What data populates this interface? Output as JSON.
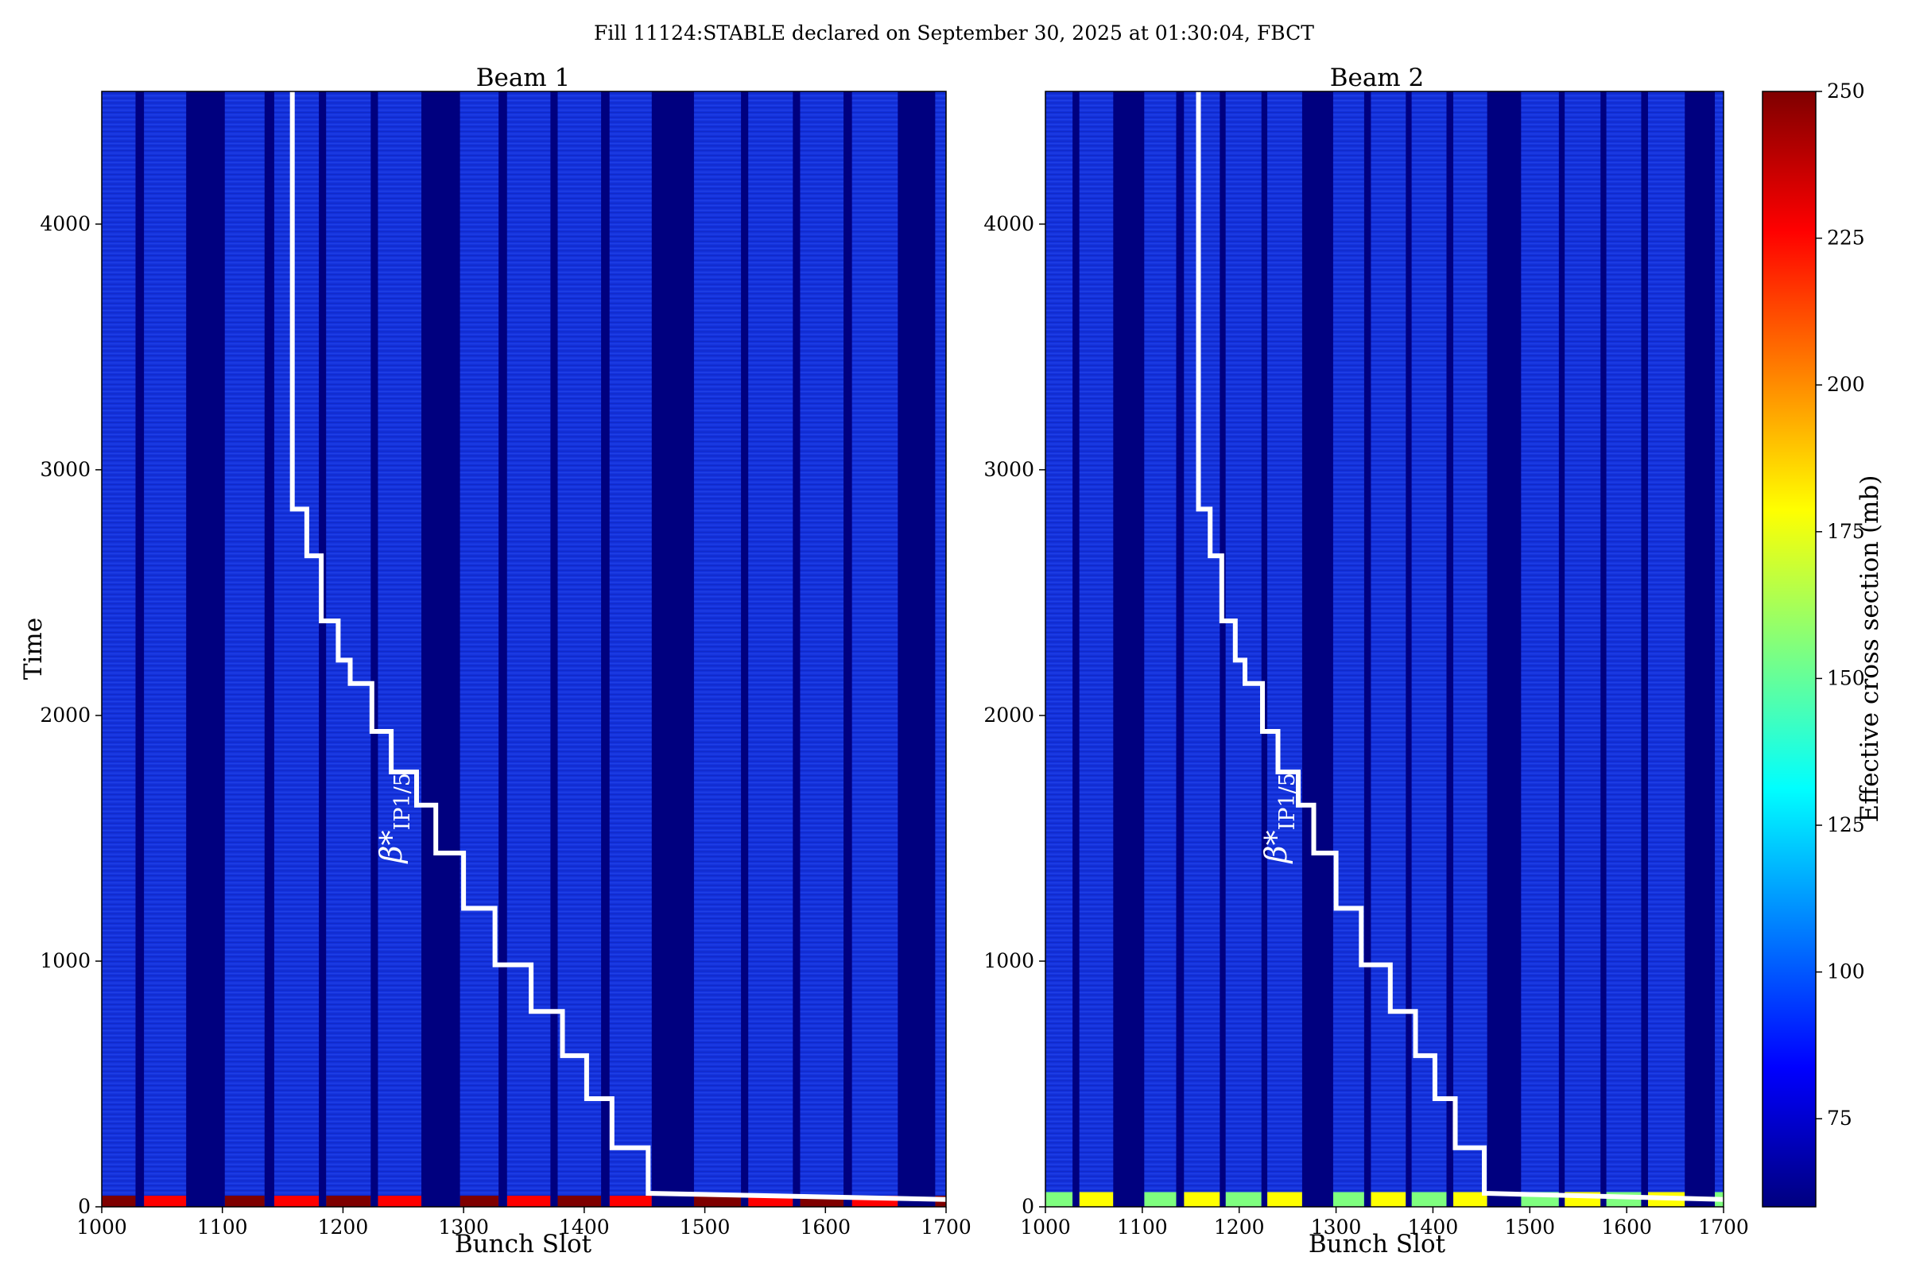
{
  "title": "Fill 11124:STABLE declared on September 30, 2025 at 01:30:04, FBCT",
  "colorbar": {
    "label": "Effective cross section (mb)",
    "ticks": [
      75,
      100,
      125,
      150,
      175,
      200,
      225,
      250
    ],
    "range": [
      60,
      250
    ],
    "colormap": [
      "#00007f",
      "#0000ff",
      "#007fff",
      "#00ffff",
      "#7fff7f",
      "#ffff00",
      "#ff7f00",
      "#ff0000",
      "#7f0000"
    ]
  },
  "background_color": "#1432dc",
  "empty_slot_color": "#00007f",
  "chart_data": [
    {
      "type": "heatmap",
      "title": "Beam 1",
      "xlabel": "Bunch Slot",
      "ylabel": "Time",
      "xlim": [
        1000,
        1700
      ],
      "ylim": [
        0,
        4540
      ],
      "x_ticks": [
        1000,
        1100,
        1200,
        1300,
        1400,
        1500,
        1600,
        1700
      ],
      "y_ticks": [
        0,
        1000,
        2000,
        3000,
        4000
      ],
      "empty_slot_ranges": [
        [
          1028,
          1035
        ],
        [
          1070,
          1102
        ],
        [
          1135,
          1143
        ],
        [
          1180,
          1186
        ],
        [
          1223,
          1229
        ],
        [
          1265,
          1297
        ],
        [
          1329,
          1336
        ],
        [
          1372,
          1378
        ],
        [
          1414,
          1421
        ],
        [
          1456,
          1491
        ],
        [
          1530,
          1536
        ],
        [
          1573,
          1579
        ],
        [
          1615,
          1622
        ],
        [
          1660,
          1691
        ]
      ],
      "early_hot_rows_max_time": 45,
      "beta_star_curve": {
        "label": "β*",
        "label_subscript": "IP1/5",
        "x": [
          1158,
          1158,
          1170,
          1170,
          1182,
          1182,
          1196,
          1196,
          1206,
          1206,
          1224,
          1224,
          1240,
          1240,
          1261,
          1261,
          1277,
          1277,
          1300,
          1300,
          1326,
          1326,
          1356,
          1356,
          1382,
          1382,
          1402,
          1402,
          1423,
          1423,
          1453,
          1453,
          1700
        ],
        "y": [
          4540,
          2840,
          2840,
          2650,
          2650,
          2385,
          2385,
          2225,
          2225,
          2130,
          2130,
          1935,
          1935,
          1770,
          1770,
          1635,
          1635,
          1440,
          1440,
          1215,
          1215,
          985,
          985,
          795,
          795,
          615,
          615,
          440,
          440,
          240,
          240,
          55,
          30
        ]
      }
    },
    {
      "type": "heatmap",
      "title": "Beam 2",
      "xlabel": "Bunch Slot",
      "ylabel": "",
      "xlim": [
        1000,
        1700
      ],
      "ylim": [
        0,
        4540
      ],
      "x_ticks": [
        1000,
        1100,
        1200,
        1300,
        1400,
        1500,
        1600,
        1700
      ],
      "y_ticks": [
        0,
        1000,
        2000,
        3000,
        4000
      ],
      "empty_slot_ranges": [
        [
          1028,
          1035
        ],
        [
          1070,
          1102
        ],
        [
          1135,
          1143
        ],
        [
          1180,
          1186
        ],
        [
          1223,
          1229
        ],
        [
          1265,
          1297
        ],
        [
          1329,
          1336
        ],
        [
          1372,
          1378
        ],
        [
          1414,
          1421
        ],
        [
          1456,
          1491
        ],
        [
          1530,
          1536
        ],
        [
          1573,
          1579
        ],
        [
          1615,
          1622
        ],
        [
          1660,
          1691
        ]
      ],
      "early_hot_rows_max_time": 60,
      "beta_star_curve": {
        "label": "β*",
        "label_subscript": "IP1/5",
        "x": [
          1158,
          1158,
          1170,
          1170,
          1182,
          1182,
          1196,
          1196,
          1206,
          1206,
          1224,
          1224,
          1240,
          1240,
          1261,
          1261,
          1277,
          1277,
          1300,
          1300,
          1326,
          1326,
          1356,
          1356,
          1382,
          1382,
          1402,
          1402,
          1423,
          1423,
          1453,
          1453,
          1700
        ],
        "y": [
          4540,
          2840,
          2840,
          2650,
          2650,
          2385,
          2385,
          2225,
          2225,
          2130,
          2130,
          1935,
          1935,
          1770,
          1770,
          1635,
          1635,
          1440,
          1440,
          1215,
          1215,
          985,
          985,
          795,
          795,
          615,
          615,
          440,
          440,
          240,
          240,
          55,
          30
        ]
      }
    }
  ]
}
